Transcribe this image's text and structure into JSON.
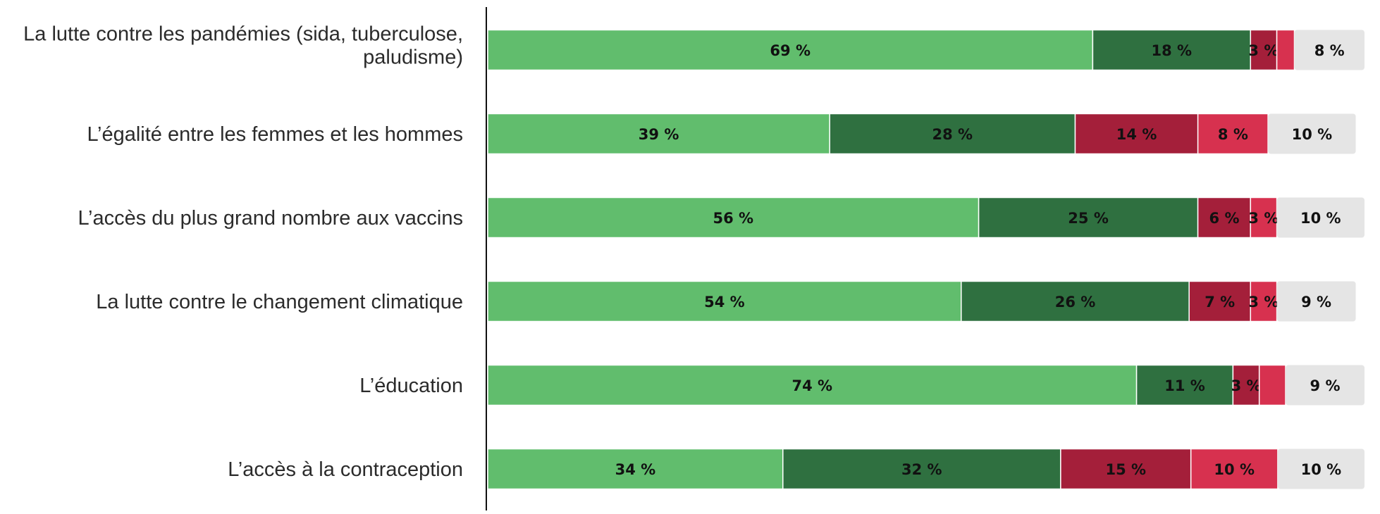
{
  "chart_data": {
    "type": "bar",
    "orientation": "horizontal",
    "stacked": true,
    "percent_suffix": " %",
    "categories": [
      [
        "La lutte contre les pandémies (sida, tuberculose,",
        "paludisme)"
      ],
      [
        "L’égalité entre les femmes et les hommes"
      ],
      [
        "L’accès du plus grand nombre aux vaccins"
      ],
      [
        "La lutte contre le changement climatique"
      ],
      [
        "L’éducation"
      ],
      [
        "L’accès à la contraception"
      ]
    ],
    "series": [
      {
        "color": "#61bd6d",
        "values": [
          69,
          39,
          56,
          54,
          74,
          34
        ]
      },
      {
        "color": "#2f7040",
        "values": [
          18,
          28,
          25,
          26,
          11,
          32
        ]
      },
      {
        "color": "#a41f3a",
        "values": [
          3,
          14,
          6,
          7,
          3,
          15
        ]
      },
      {
        "color": "#d7314f",
        "values": [
          2,
          8,
          3,
          3,
          3,
          10
        ]
      },
      {
        "color": "#e5e5e5",
        "values": [
          8,
          10,
          10,
          9,
          9,
          10
        ]
      }
    ],
    "shown_labels": [
      [
        "69 %",
        "18 %",
        "3 %",
        null,
        "8 %"
      ],
      [
        "39 %",
        "28 %",
        "14 %",
        "8 %",
        "10 %"
      ],
      [
        "56 %",
        "25 %",
        "6 %",
        "3 %",
        "10 %"
      ],
      [
        "54 %",
        "26 %",
        "7 %",
        "3 %",
        "9 %"
      ],
      [
        "74 %",
        "11 %",
        "3 %",
        null,
        "9 %"
      ],
      [
        "34 %",
        "32 %",
        "15 %",
        "10 %",
        "10 %"
      ]
    ],
    "xlim": [
      0,
      100
    ],
    "grid": false,
    "legend": "none"
  }
}
